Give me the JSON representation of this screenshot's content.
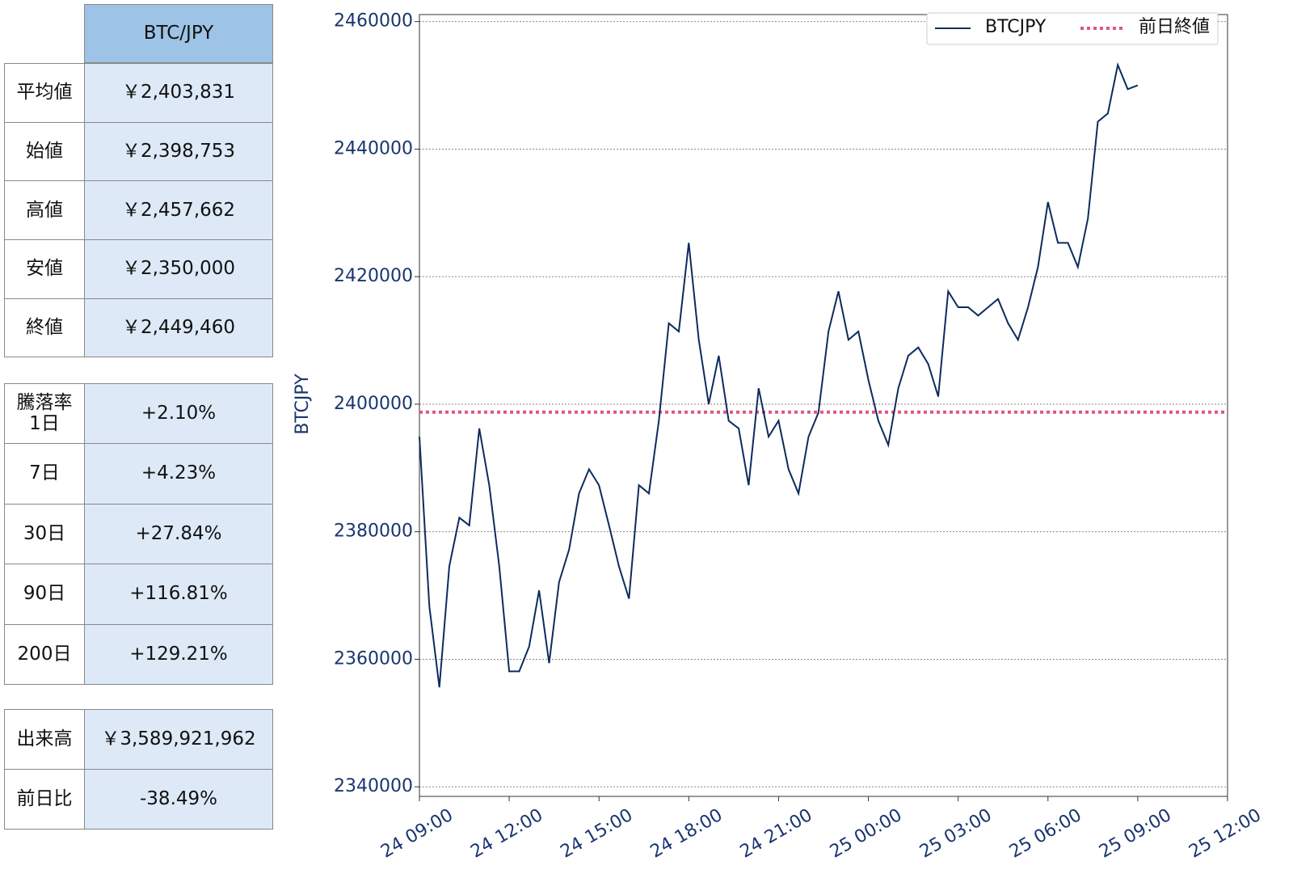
{
  "tables": [
    {
      "header": "BTC/JPY",
      "rows": [
        [
          "平均値",
          "￥2,403,831"
        ],
        [
          "始値",
          "￥2,398,753"
        ],
        [
          "高値",
          "￥2,457,662"
        ],
        [
          "安値",
          "￥2,350,000"
        ],
        [
          "終値",
          "￥2,449,460"
        ]
      ]
    },
    {
      "rows": [
        [
          "騰落率\n1日",
          "+2.10%"
        ],
        [
          "7日",
          "+4.23%"
        ],
        [
          "30日",
          "+27.84%"
        ],
        [
          "90日",
          "+116.81%"
        ],
        [
          "200日",
          "+129.21%"
        ]
      ]
    },
    {
      "rows": [
        [
          "出来高",
          "￥3,589,921,962"
        ],
        [
          "前日比",
          "-38.49%"
        ]
      ]
    }
  ],
  "chart_data": {
    "type": "line",
    "ylabel": "BTCJPY",
    "x": [
      "24 09:00",
      "24 09:20",
      "24 09:40",
      "24 10:00",
      "24 10:20",
      "24 10:40",
      "24 11:00",
      "24 11:20",
      "24 11:40",
      "24 12:00",
      "24 12:20",
      "24 12:40",
      "24 13:00",
      "24 13:20",
      "24 13:40",
      "24 14:00",
      "24 14:20",
      "24 14:40",
      "24 15:00",
      "24 15:20",
      "24 15:40",
      "24 16:00",
      "24 16:20",
      "24 16:40",
      "24 17:00",
      "24 17:20",
      "24 17:40",
      "24 18:00",
      "24 18:20",
      "24 18:40",
      "24 19:00",
      "24 19:20",
      "24 19:40",
      "24 20:00",
      "24 20:20",
      "24 20:40",
      "24 21:00",
      "24 21:20",
      "24 21:40",
      "24 22:00",
      "24 22:20",
      "24 22:40",
      "24 23:00",
      "24 23:20",
      "24 23:40",
      "25 00:00",
      "25 00:20",
      "25 00:40",
      "25 01:00",
      "25 01:20",
      "25 01:40",
      "25 02:00",
      "25 02:20",
      "25 02:40",
      "25 03:00",
      "25 03:20",
      "25 03:40",
      "25 04:00",
      "25 04:20",
      "25 04:40",
      "25 05:00",
      "25 05:20",
      "25 05:40",
      "25 06:00",
      "25 06:20",
      "25 06:40",
      "25 07:00",
      "25 07:20",
      "25 07:40",
      "25 08:00",
      "25 08:20",
      "25 08:40",
      "25 09:00"
    ],
    "series": [
      {
        "name": "BTCJPY",
        "color": "#0d2b5e",
        "values": [
          2394900,
          2368300,
          2355600,
          2374600,
          2382200,
          2381000,
          2396200,
          2387300,
          2374600,
          2358100,
          2358100,
          2362000,
          2370800,
          2359400,
          2372100,
          2377200,
          2386000,
          2389800,
          2387300,
          2381000,
          2374600,
          2369500,
          2387300,
          2386000,
          2397400,
          2412700,
          2411400,
          2425300,
          2410100,
          2400000,
          2407600,
          2397400,
          2396200,
          2387300,
          2402500,
          2394900,
          2397400,
          2389800,
          2386000,
          2394900,
          2398700,
          2411400,
          2417700,
          2410100,
          2411400,
          2403800,
          2397400,
          2393600,
          2402500,
          2407600,
          2408900,
          2406300,
          2401200,
          2417700,
          2415200,
          2415200,
          2413900,
          2415200,
          2416500,
          2412700,
          2410100,
          2415200,
          2421500,
          2431700,
          2425300,
          2425300,
          2421500,
          2429100,
          2444300,
          2445600,
          2453200,
          2449400,
          2450000
        ]
      }
    ],
    "reference_line": {
      "name": "前日終値",
      "value": 2398753,
      "color": "#e0587a"
    },
    "xlim": [
      "24 09:00",
      "25 12:00"
    ],
    "xticks": [
      "24 09:00",
      "24 12:00",
      "24 15:00",
      "24 18:00",
      "24 21:00",
      "25 00:00",
      "25 03:00",
      "25 06:00",
      "25 09:00",
      "25 12:00"
    ],
    "ylim": [
      2338500,
      2461100
    ],
    "yticks": [
      2340000,
      2360000,
      2380000,
      2400000,
      2420000,
      2440000,
      2460000
    ],
    "grid": true,
    "legend": "upper right"
  }
}
